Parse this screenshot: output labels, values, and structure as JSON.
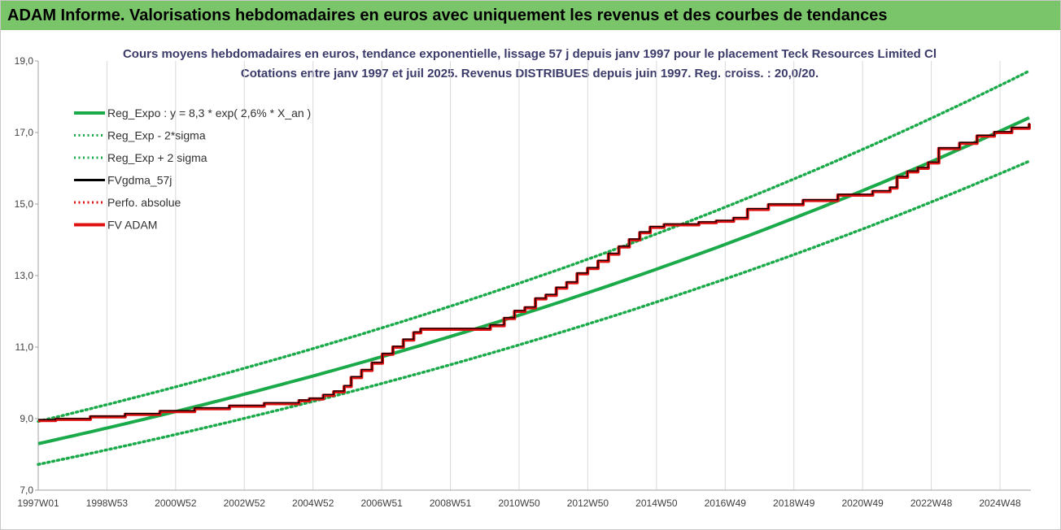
{
  "header": {
    "title": "ADAM Informe. Valorisations hebdomadaires en euros avec uniquement les revenus et des courbes de tendances"
  },
  "chart_data": {
    "type": "line",
    "title_line1": "Cours moyens hebdomadaires en euros, tendance exponentielle, lissage 57 j depuis janv 1997 pour le placement Teck Resources Limited Cl",
    "title_line2": "Cotations entre janv 1997 et juil 2025. Revenus DISTRIBUES depuis juin 1997. Reg. croiss. : 20,0/20.",
    "x_tick_labels": [
      "1997W01",
      "1998W53",
      "2000W52",
      "2002W52",
      "2004W52",
      "2006W51",
      "2008W51",
      "2010W50",
      "2012W50",
      "2014W50",
      "2016W49",
      "2018W49",
      "2020W49",
      "2022W48",
      "2024W48"
    ],
    "xlim": [
      1997.0,
      2025.55
    ],
    "ylim": [
      7.0,
      19.0
    ],
    "y_ticks": [
      7.0,
      9.0,
      11.0,
      13.0,
      15.0,
      17.0,
      19.0
    ],
    "y_tick_labels": [
      "7,0",
      "9,0",
      "11,0",
      "13,0",
      "15,0",
      "17,0",
      "19,0"
    ],
    "grid": "vertical",
    "legend_position": "top-left",
    "regression": {
      "a": 8.3,
      "b": 0.026,
      "sigma_factor": 1.075
    },
    "series": [
      {
        "name": "Reg_Expo : y = 8,3 * exp( 2,6% *  X_an )",
        "color": "#1aaa4a",
        "style": "solid",
        "kind": "reg"
      },
      {
        "name": "Reg_Exp - 2*sigma",
        "color": "#1aaa4a",
        "style": "dotted",
        "kind": "reg_low"
      },
      {
        "name": "Reg_Exp + 2 sigma",
        "color": "#1aaa4a",
        "style": "dotted",
        "kind": "reg_high"
      },
      {
        "name": "FVgdma_57j",
        "color": "#000000",
        "style": "solid",
        "kind": "data"
      },
      {
        "name": "Perfo. absolue",
        "color": "#e01010",
        "style": "dotted",
        "kind": "none"
      },
      {
        "name": "FV ADAM",
        "color": "#e01010",
        "style": "solid",
        "kind": "data"
      }
    ],
    "fv_adam": {
      "x": [
        1997.0,
        1997.5,
        1998.5,
        1999.5,
        2000.5,
        2001.5,
        2002.5,
        2003.5,
        2004.5,
        2004.8,
        2005.2,
        2005.5,
        2005.8,
        2006.0,
        2006.3,
        2006.6,
        2006.9,
        2007.2,
        2007.5,
        2007.8,
        2008.0,
        2009.0,
        2009.8,
        2010.0,
        2010.4,
        2010.7,
        2011.0,
        2011.3,
        2011.6,
        2011.9,
        2012.2,
        2012.5,
        2012.8,
        2013.1,
        2013.4,
        2013.7,
        2014.0,
        2014.3,
        2014.6,
        2015.0,
        2016.0,
        2016.5,
        2017.0,
        2017.4,
        2018.0,
        2019.0,
        2020.0,
        2021.0,
        2021.5,
        2021.7,
        2022.0,
        2022.3,
        2022.6,
        2022.9,
        2023.5,
        2024.0,
        2024.5,
        2025.0,
        2025.5
      ],
      "y": [
        8.95,
        8.98,
        9.05,
        9.12,
        9.2,
        9.28,
        9.35,
        9.42,
        9.5,
        9.55,
        9.65,
        9.75,
        9.9,
        10.15,
        10.35,
        10.55,
        10.8,
        11.0,
        11.2,
        11.4,
        11.5,
        11.5,
        11.5,
        11.6,
        11.8,
        12.0,
        12.1,
        12.35,
        12.45,
        12.65,
        12.8,
        13.05,
        13.2,
        13.4,
        13.6,
        13.8,
        14.0,
        14.2,
        14.35,
        14.42,
        14.48,
        14.52,
        14.6,
        14.85,
        14.98,
        15.1,
        15.25,
        15.35,
        15.45,
        15.75,
        15.9,
        16.0,
        16.15,
        16.55,
        16.7,
        16.9,
        17.0,
        17.12,
        17.25
      ]
    }
  }
}
